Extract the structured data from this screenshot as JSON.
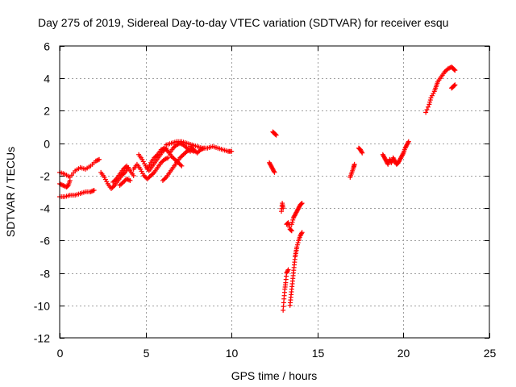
{
  "chart_data": {
    "type": "scatter",
    "title": "Day 275 of 2019, Sidereal Day-to-day VTEC variation (SDTVAR) for receiver esqu",
    "xlabel": "GPS time / hours",
    "ylabel": "SDTVAR / TECUs",
    "xlim": [
      0,
      25
    ],
    "ylim": [
      -12,
      6
    ],
    "xticks": [
      0,
      5,
      10,
      15,
      20,
      25
    ],
    "yticks": [
      -12,
      -10,
      -8,
      -6,
      -4,
      -2,
      0,
      2,
      4,
      6
    ],
    "grid": true,
    "marker": "plus",
    "color": "#ff0000",
    "segments": [
      [
        [
          0.0,
          -1.8
        ],
        [
          0.3,
          -1.9
        ],
        [
          0.6,
          -2.1
        ],
        [
          0.9,
          -1.7
        ],
        [
          1.2,
          -1.5
        ],
        [
          1.5,
          -1.6
        ],
        [
          1.8,
          -1.4
        ],
        [
          2.1,
          -1.1
        ],
        [
          2.3,
          -1.0
        ]
      ],
      [
        [
          0.0,
          -2.5
        ],
        [
          0.2,
          -2.6
        ],
        [
          0.4,
          -2.7
        ],
        [
          0.5,
          -2.6
        ],
        [
          0.6,
          -2.3
        ]
      ],
      [
        [
          0.0,
          -3.3
        ],
        [
          0.3,
          -3.3
        ],
        [
          0.6,
          -3.2
        ],
        [
          0.9,
          -3.2
        ],
        [
          1.2,
          -3.1
        ],
        [
          1.5,
          -3.0
        ],
        [
          1.8,
          -3.0
        ],
        [
          2.0,
          -2.9
        ]
      ],
      [
        [
          2.4,
          -1.8
        ],
        [
          2.6,
          -2.1
        ],
        [
          2.8,
          -2.5
        ],
        [
          3.0,
          -2.8
        ],
        [
          3.2,
          -2.6
        ],
        [
          3.4,
          -2.3
        ],
        [
          3.6,
          -2.0
        ],
        [
          3.8,
          -1.8
        ],
        [
          4.0,
          -1.5
        ]
      ],
      [
        [
          3.1,
          -2.4
        ],
        [
          3.3,
          -2.2
        ],
        [
          3.5,
          -1.9
        ],
        [
          3.7,
          -1.6
        ],
        [
          3.9,
          -1.4
        ],
        [
          4.1,
          -1.7
        ],
        [
          4.3,
          -2.0
        ]
      ],
      [
        [
          3.5,
          -2.6
        ],
        [
          3.7,
          -2.4
        ],
        [
          3.9,
          -2.2
        ],
        [
          4.1,
          -2.3
        ]
      ],
      [
        [
          4.3,
          -1.6
        ],
        [
          4.5,
          -1.3
        ],
        [
          4.7,
          -1.6
        ],
        [
          4.9,
          -2.0
        ],
        [
          5.1,
          -2.2
        ],
        [
          5.3,
          -2.0
        ],
        [
          5.5,
          -1.8
        ],
        [
          5.7,
          -1.5
        ],
        [
          5.9,
          -1.2
        ],
        [
          6.1,
          -1.0
        ],
        [
          6.3,
          -0.9
        ]
      ],
      [
        [
          4.6,
          -0.7
        ],
        [
          4.8,
          -1.0
        ],
        [
          5.0,
          -1.4
        ],
        [
          5.2,
          -1.7
        ],
        [
          5.4,
          -1.4
        ],
        [
          5.6,
          -1.1
        ],
        [
          5.8,
          -0.8
        ],
        [
          6.0,
          -0.5
        ],
        [
          6.2,
          -0.3
        ]
      ],
      [
        [
          5.1,
          -1.6
        ],
        [
          5.3,
          -1.2
        ],
        [
          5.5,
          -0.9
        ],
        [
          5.7,
          -0.7
        ],
        [
          5.9,
          -0.4
        ],
        [
          6.1,
          -0.3
        ],
        [
          6.3,
          -0.5
        ],
        [
          6.5,
          -0.8
        ],
        [
          6.7,
          -1.0
        ],
        [
          6.9,
          -1.2
        ],
        [
          7.1,
          -1.4
        ]
      ],
      [
        [
          6.0,
          -2.3
        ],
        [
          6.2,
          -2.1
        ],
        [
          6.4,
          -1.8
        ],
        [
          6.6,
          -1.5
        ],
        [
          6.8,
          -1.2
        ],
        [
          7.0,
          -0.9
        ],
        [
          7.2,
          -0.7
        ],
        [
          7.4,
          -0.5
        ],
        [
          7.6,
          -0.4
        ],
        [
          7.8,
          -0.5
        ]
      ],
      [
        [
          6.4,
          -0.6
        ],
        [
          6.6,
          -0.3
        ],
        [
          6.8,
          -0.1
        ],
        [
          7.0,
          0.0
        ],
        [
          7.2,
          -0.1
        ],
        [
          7.4,
          -0.3
        ],
        [
          7.6,
          -0.5
        ]
      ],
      [
        [
          6.2,
          -0.1
        ],
        [
          6.5,
          0.0
        ],
        [
          6.8,
          0.1
        ],
        [
          7.1,
          0.1
        ],
        [
          7.4,
          0.0
        ],
        [
          7.7,
          -0.1
        ],
        [
          8.0,
          -0.2
        ],
        [
          8.3,
          -0.3
        ],
        [
          8.6,
          -0.3
        ],
        [
          8.9,
          -0.2
        ],
        [
          9.2,
          -0.3
        ],
        [
          9.5,
          -0.4
        ],
        [
          9.8,
          -0.5
        ],
        [
          10.0,
          -0.5
        ]
      ],
      [
        [
          7.6,
          -0.2
        ],
        [
          7.8,
          -0.4
        ],
        [
          8.0,
          -0.6
        ],
        [
          8.2,
          -0.4
        ],
        [
          8.4,
          -0.3
        ]
      ],
      [
        [
          12.2,
          -1.2
        ],
        [
          12.3,
          -1.4
        ],
        [
          12.4,
          -1.6
        ],
        [
          12.5,
          -1.8
        ]
      ],
      [
        [
          12.4,
          0.7
        ],
        [
          12.5,
          0.6
        ],
        [
          12.6,
          0.5
        ]
      ],
      [
        [
          12.9,
          -4.2
        ],
        [
          12.95,
          -3.7
        ],
        [
          13.0,
          -4.0
        ]
      ],
      [
        [
          13.0,
          -10.3
        ],
        [
          13.05,
          -9.6
        ],
        [
          13.1,
          -9.0
        ],
        [
          13.15,
          -8.6
        ],
        [
          13.2,
          -8.0
        ],
        [
          13.3,
          -7.8
        ]
      ],
      [
        [
          13.2,
          -5.0
        ],
        [
          13.3,
          -4.9
        ],
        [
          13.4,
          -5.3
        ],
        [
          13.5,
          -5.4
        ]
      ],
      [
        [
          13.4,
          -10.0
        ],
        [
          13.45,
          -9.5
        ],
        [
          13.5,
          -9.0
        ],
        [
          13.55,
          -8.5
        ],
        [
          13.6,
          -8.0
        ],
        [
          13.65,
          -7.5
        ],
        [
          13.7,
          -7.0
        ],
        [
          13.75,
          -6.7
        ],
        [
          13.8,
          -6.4
        ],
        [
          13.9,
          -6.0
        ],
        [
          14.0,
          -5.7
        ],
        [
          14.1,
          -5.5
        ]
      ],
      [
        [
          13.5,
          -5.0
        ],
        [
          13.6,
          -4.6
        ],
        [
          13.7,
          -4.4
        ],
        [
          13.8,
          -4.2
        ],
        [
          13.9,
          -4.0
        ],
        [
          14.0,
          -3.8
        ],
        [
          14.1,
          -3.7
        ]
      ],
      [
        [
          16.9,
          -2.1
        ],
        [
          17.0,
          -1.8
        ],
        [
          17.1,
          -1.5
        ],
        [
          17.15,
          -1.3
        ]
      ],
      [
        [
          17.4,
          -0.3
        ],
        [
          17.5,
          -0.4
        ],
        [
          17.6,
          -0.6
        ]
      ],
      [
        [
          18.8,
          -0.7
        ],
        [
          18.9,
          -0.9
        ],
        [
          19.0,
          -1.1
        ],
        [
          19.1,
          -1.3
        ],
        [
          19.2,
          -1.0
        ],
        [
          19.3,
          -1.2
        ],
        [
          19.4,
          -0.9
        ],
        [
          19.5,
          -1.1
        ],
        [
          19.6,
          -1.3
        ],
        [
          19.7,
          -1.2
        ],
        [
          19.8,
          -1.0
        ],
        [
          19.9,
          -0.8
        ],
        [
          20.0,
          -0.6
        ],
        [
          20.1,
          -0.3
        ],
        [
          20.2,
          -0.1
        ],
        [
          20.3,
          0.1
        ]
      ],
      [
        [
          21.3,
          1.9
        ],
        [
          21.5,
          2.4
        ],
        [
          21.6,
          2.8
        ],
        [
          21.8,
          3.2
        ],
        [
          21.9,
          3.5
        ],
        [
          22.0,
          3.8
        ],
        [
          22.2,
          4.1
        ],
        [
          22.4,
          4.4
        ],
        [
          22.6,
          4.6
        ],
        [
          22.8,
          4.7
        ],
        [
          22.9,
          4.6
        ],
        [
          23.0,
          4.5
        ]
      ],
      [
        [
          22.8,
          3.4
        ],
        [
          22.9,
          3.5
        ],
        [
          23.0,
          3.6
        ]
      ]
    ]
  }
}
